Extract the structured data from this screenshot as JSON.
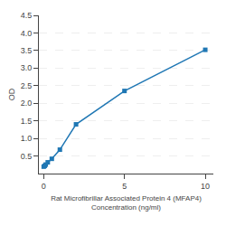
{
  "chart_data": {
    "type": "line",
    "x": [
      0.0,
      0.0625,
      0.125,
      0.25,
      0.5,
      1.0,
      2.0,
      5.0,
      10.0
    ],
    "values": [
      0.197,
      0.22,
      0.255,
      0.32,
      0.42,
      0.68,
      1.4,
      2.35,
      3.52
    ],
    "marker": "square",
    "xlabel": "Rat Microfibrillar Associated Protein 4 (MFAP4)\nConcentration (ng/ml)",
    "ylabel": "OD",
    "xlim": [
      -0.3,
      10.5
    ],
    "ylim": [
      0.0,
      4.5
    ],
    "xticks": [
      0,
      5,
      10
    ],
    "yticks": [
      0.5,
      {
        "value": 1.0,
        "label": "1.0"
      },
      1.5,
      {
        "value": 2.0,
        "label": "2.0"
      },
      2.5,
      {
        "value": 3.0,
        "label": "3.0"
      },
      3.5,
      {
        "value": 4.0,
        "label": "4.0"
      },
      4.5
    ],
    "grid": "y"
  }
}
